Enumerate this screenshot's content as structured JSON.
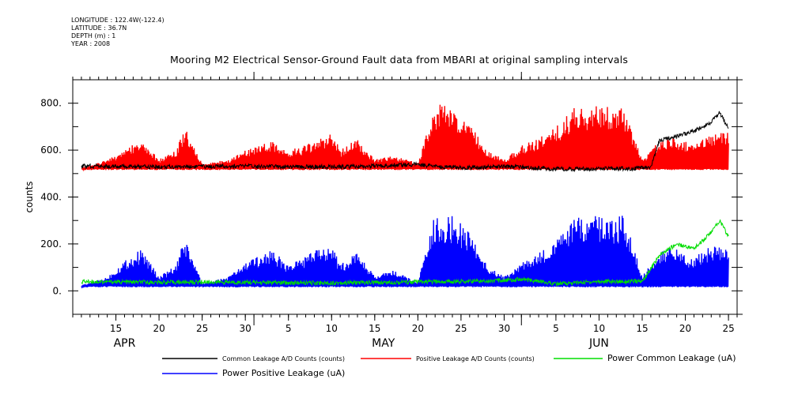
{
  "meta": {
    "longitude": "LONGITUDE : 122.4W(-122.4)",
    "latitude": "LATITUDE : 36.7N",
    "depth": "DEPTH (m) : 1",
    "year": "YEAR : 2008"
  },
  "chart_data": {
    "type": "line",
    "title": "Mooring M2 Electrical Sensor-Ground Fault data from MBARI at original sampling intervals",
    "ylabel": "counts",
    "xlabel": "",
    "ylim": [
      -100,
      900
    ],
    "y_ticks": [
      0,
      200,
      400,
      600,
      800
    ],
    "y_tick_labels": [
      "0.",
      "200.",
      "400.",
      "600.",
      "800."
    ],
    "xlim": [
      "2008-04-10",
      "2008-06-26"
    ],
    "x_tick_labels": [
      "15",
      "20",
      "25",
      "30",
      "5",
      "10",
      "15",
      "20",
      "25",
      "30",
      "5",
      "10",
      "15",
      "20",
      "25"
    ],
    "x_tick_dates": [
      "2008-04-15",
      "2008-04-20",
      "2008-04-25",
      "2008-04-30",
      "2008-05-05",
      "2008-05-10",
      "2008-05-15",
      "2008-05-20",
      "2008-05-25",
      "2008-05-30",
      "2008-06-05",
      "2008-06-10",
      "2008-06-15",
      "2008-06-20",
      "2008-06-25"
    ],
    "month_labels": [
      {
        "label": "APR",
        "date": "2008-04-16"
      },
      {
        "label": "MAY",
        "date": "2008-05-16"
      },
      {
        "label": "JUN",
        "date": "2008-06-10"
      }
    ],
    "month_boundaries": [
      "2008-05-01",
      "2008-06-01"
    ],
    "grid": false,
    "legend_position": "bottom",
    "series": [
      {
        "name": "Common Leakage A/D Counts (counts)",
        "color": "#000000",
        "points": [
          [
            "2008-04-11",
            532
          ],
          [
            "2008-04-15",
            530
          ],
          [
            "2008-04-20",
            528
          ],
          [
            "2008-04-25",
            530
          ],
          [
            "2008-04-30",
            532
          ],
          [
            "2008-05-05",
            530
          ],
          [
            "2008-05-10",
            528
          ],
          [
            "2008-05-15",
            532
          ],
          [
            "2008-05-20",
            540
          ],
          [
            "2008-05-22",
            530
          ],
          [
            "2008-05-25",
            525
          ],
          [
            "2008-05-30",
            530
          ],
          [
            "2008-06-01",
            528
          ],
          [
            "2008-06-05",
            520
          ],
          [
            "2008-06-10",
            520
          ],
          [
            "2008-06-14",
            522
          ],
          [
            "2008-06-16",
            525
          ],
          [
            "2008-06-17",
            640
          ],
          [
            "2008-06-19",
            660
          ],
          [
            "2008-06-21",
            680
          ],
          [
            "2008-06-23",
            720
          ],
          [
            "2008-06-24",
            760
          ],
          [
            "2008-06-25",
            690
          ]
        ]
      },
      {
        "name": "Positive Leakage A/D Counts (counts)",
        "color": "#ff0000",
        "points": [
          [
            "2008-04-11",
            520
          ],
          [
            "2008-04-14",
            560
          ],
          [
            "2008-04-16",
            600
          ],
          [
            "2008-04-18",
            650
          ],
          [
            "2008-04-20",
            560
          ],
          [
            "2008-04-22",
            600
          ],
          [
            "2008-04-23",
            700
          ],
          [
            "2008-04-25",
            540
          ],
          [
            "2008-04-28",
            560
          ],
          [
            "2008-04-30",
            600
          ],
          [
            "2008-05-03",
            640
          ],
          [
            "2008-05-05",
            600
          ],
          [
            "2008-05-07",
            620
          ],
          [
            "2008-05-10",
            680
          ],
          [
            "2008-05-11",
            600
          ],
          [
            "2008-05-13",
            650
          ],
          [
            "2008-05-15",
            560
          ],
          [
            "2008-05-17",
            580
          ],
          [
            "2008-05-20",
            545
          ],
          [
            "2008-05-22",
            800
          ],
          [
            "2008-05-24",
            780
          ],
          [
            "2008-05-26",
            720
          ],
          [
            "2008-05-28",
            600
          ],
          [
            "2008-05-30",
            560
          ],
          [
            "2008-06-01",
            620
          ],
          [
            "2008-06-03",
            650
          ],
          [
            "2008-06-05",
            700
          ],
          [
            "2008-06-07",
            780
          ],
          [
            "2008-06-10",
            790
          ],
          [
            "2008-06-13",
            780
          ],
          [
            "2008-06-15",
            560
          ],
          [
            "2008-06-17",
            640
          ],
          [
            "2008-06-19",
            660
          ],
          [
            "2008-06-21",
            620
          ],
          [
            "2008-06-23",
            680
          ],
          [
            "2008-06-25",
            680
          ]
        ]
      },
      {
        "name": "Power Common Leakage (uA)",
        "color": "#00dd00",
        "points": [
          [
            "2008-04-11",
            40
          ],
          [
            "2008-04-15",
            38
          ],
          [
            "2008-04-20",
            36
          ],
          [
            "2008-04-25",
            38
          ],
          [
            "2008-04-30",
            36
          ],
          [
            "2008-05-05",
            34
          ],
          [
            "2008-05-10",
            34
          ],
          [
            "2008-05-15",
            36
          ],
          [
            "2008-05-20",
            38
          ],
          [
            "2008-05-25",
            40
          ],
          [
            "2008-05-30",
            45
          ],
          [
            "2008-06-01",
            50
          ],
          [
            "2008-06-05",
            30
          ],
          [
            "2008-06-10",
            40
          ],
          [
            "2008-06-15",
            40
          ],
          [
            "2008-06-17",
            150
          ],
          [
            "2008-06-19",
            200
          ],
          [
            "2008-06-21",
            180
          ],
          [
            "2008-06-23",
            250
          ],
          [
            "2008-06-24",
            300
          ],
          [
            "2008-06-25",
            230
          ]
        ]
      },
      {
        "name": "Power Positive Leakage (uA)",
        "color": "#0000ff",
        "points": [
          [
            "2008-04-11",
            20
          ],
          [
            "2008-04-14",
            60
          ],
          [
            "2008-04-16",
            130
          ],
          [
            "2008-04-18",
            180
          ],
          [
            "2008-04-20",
            60
          ],
          [
            "2008-04-22",
            110
          ],
          [
            "2008-04-23",
            230
          ],
          [
            "2008-04-25",
            30
          ],
          [
            "2008-04-28",
            60
          ],
          [
            "2008-04-30",
            120
          ],
          [
            "2008-05-03",
            180
          ],
          [
            "2008-05-05",
            110
          ],
          [
            "2008-05-07",
            150
          ],
          [
            "2008-05-10",
            210
          ],
          [
            "2008-05-11",
            110
          ],
          [
            "2008-05-13",
            170
          ],
          [
            "2008-05-15",
            60
          ],
          [
            "2008-05-17",
            90
          ],
          [
            "2008-05-20",
            35
          ],
          [
            "2008-05-22",
            330
          ],
          [
            "2008-05-24",
            320
          ],
          [
            "2008-05-26",
            260
          ],
          [
            "2008-05-28",
            110
          ],
          [
            "2008-05-30",
            60
          ],
          [
            "2008-06-01",
            120
          ],
          [
            "2008-06-03",
            160
          ],
          [
            "2008-06-05",
            220
          ],
          [
            "2008-06-07",
            310
          ],
          [
            "2008-06-10",
            320
          ],
          [
            "2008-06-13",
            320
          ],
          [
            "2008-06-15",
            60
          ],
          [
            "2008-06-17",
            180
          ],
          [
            "2008-06-19",
            180
          ],
          [
            "2008-06-21",
            140
          ],
          [
            "2008-06-23",
            200
          ],
          [
            "2008-06-25",
            180
          ]
        ]
      }
    ]
  }
}
